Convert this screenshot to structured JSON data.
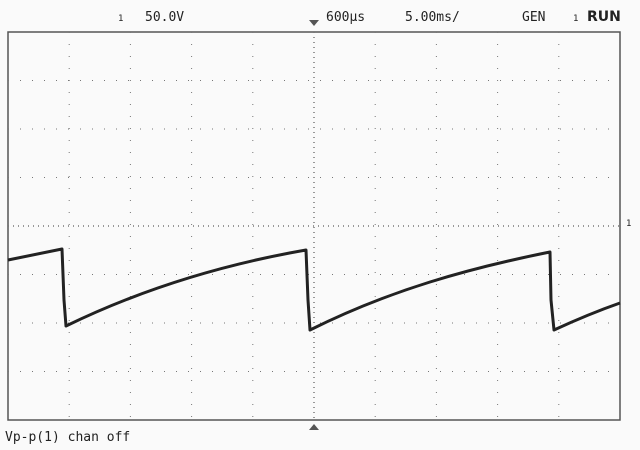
{
  "status_bar": {
    "channel_scale": "50.0V",
    "trigger_delay": "600µs",
    "time_base": "5.00ms/",
    "mode": "GEN",
    "state": "RUN"
  },
  "footer": {
    "measurement": "Vp-p(1) chan off"
  }
}
